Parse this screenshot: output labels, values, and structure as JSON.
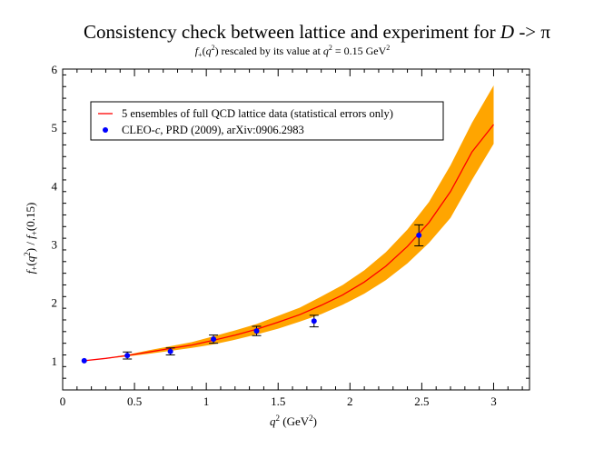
{
  "chart_data": {
    "type": "line",
    "title_main": "Consistency check between lattice and experiment for ",
    "title_var": "D",
    "title_arrow": " -> π",
    "subtitle_func": "f",
    "subtitle_sub": "+",
    "subtitle_mid": "(",
    "subtitle_q": "q",
    "subtitle_sup": "2",
    "subtitle_rest": ") rescaled by its value at ",
    "subtitle_q2": "q",
    "subtitle_sup2": "2",
    "subtitle_eq": " = 0.15 GeV",
    "subtitle_sup3": "2",
    "xlabel_q": "q",
    "xlabel_sup": "2",
    "xlabel_unit": " (GeV",
    "xlabel_sup2": "2",
    "xlabel_close": ")",
    "ylabel_f": "f",
    "ylabel_sub": "+",
    "ylabel_open": "(",
    "ylabel_q": "q",
    "ylabel_sup": "2",
    "ylabel_mid": ") / ",
    "ylabel_f2": "f",
    "ylabel_sub2": "+",
    "ylabel_end": "(0.15)",
    "xlim": [
      0,
      3.25
    ],
    "ylim": [
      0.5,
      6
    ],
    "x_ticks": [
      0,
      0.5,
      1,
      1.5,
      2,
      2.5,
      3
    ],
    "x_tick_labels": [
      "0",
      "0.5",
      "1",
      "1.5",
      "2",
      "2.5",
      "3"
    ],
    "y_ticks": [
      1,
      2,
      3,
      4,
      5,
      6
    ],
    "y_tick_labels": [
      "1",
      "2",
      "3",
      "4",
      "5",
      "6"
    ],
    "legend_position": "top-left",
    "legend": {
      "lattice": "5 ensembles of full QCD lattice data (statistical errors only)",
      "cleo_a": "CLEO-",
      "cleo_c": "c",
      "cleo_b": ", PRD (2009), arXiv:0906.2983"
    },
    "lattice_band": {
      "x": [
        0.15,
        0.3,
        0.45,
        0.6,
        0.75,
        0.9,
        1.05,
        1.2,
        1.35,
        1.5,
        1.65,
        1.8,
        1.95,
        2.1,
        2.25,
        2.4,
        2.55,
        2.7,
        2.85,
        3.0
      ],
      "center": [
        1.0,
        1.04,
        1.09,
        1.15,
        1.21,
        1.27,
        1.35,
        1.44,
        1.54,
        1.66,
        1.79,
        1.95,
        2.13,
        2.35,
        2.62,
        2.96,
        3.37,
        3.9,
        4.58,
        5.05
      ],
      "lower": [
        1.0,
        1.035,
        1.075,
        1.12,
        1.17,
        1.22,
        1.28,
        1.36,
        1.45,
        1.55,
        1.67,
        1.8,
        1.96,
        2.15,
        2.38,
        2.67,
        3.02,
        3.45,
        4.1,
        4.72
      ],
      "upper": [
        1.0,
        1.045,
        1.105,
        1.18,
        1.25,
        1.32,
        1.42,
        1.52,
        1.63,
        1.77,
        1.91,
        2.1,
        2.3,
        2.55,
        2.86,
        3.25,
        3.72,
        4.35,
        5.08,
        5.72
      ]
    },
    "cleo_points": {
      "x": [
        0.15,
        0.45,
        0.75,
        1.05,
        1.35,
        1.75,
        2.48
      ],
      "y": [
        1.0,
        1.09,
        1.16,
        1.37,
        1.51,
        1.68,
        3.15
      ],
      "err": [
        0.0,
        0.06,
        0.06,
        0.07,
        0.08,
        0.1,
        0.18
      ]
    },
    "colors": {
      "band": "#ffa500",
      "line": "#ff0000",
      "points": "#0000ff",
      "axis": "#000000"
    },
    "grid": false
  }
}
